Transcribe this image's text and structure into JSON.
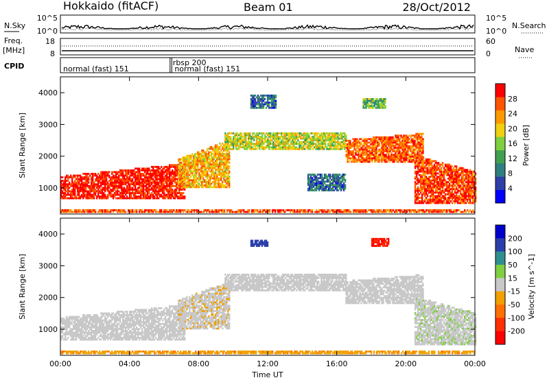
{
  "header": {
    "title": "Hokkaido (fitACF)",
    "beam": "Beam 01",
    "date": "28/Oct/2012"
  },
  "labels": {
    "nsky": "N.Sky",
    "nsearch": "N.Search",
    "freq_line1": "Freq.",
    "freq_line2": "[MHz]",
    "nave": "Nave",
    "cpid": "CPID",
    "nsky_tick_hi": "10^5",
    "nsky_tick_lo": "10^0",
    "freq_tick_hi": "18",
    "freq_tick_lo": "8",
    "nave_tick_hi": "60",
    "nave_tick_lo": "0",
    "nsearch_tick_hi": "10^5",
    "nsearch_tick_lo": "10^0"
  },
  "cpid_segments": [
    {
      "label": "normal (fast) 151",
      "start_hour": 0
    },
    {
      "label": "rbsp 200",
      "start_hour": 6.35
    },
    {
      "label": "normal (fast) 151",
      "start_hour": 6.45
    }
  ],
  "colors": {
    "power": [
      "#0000ff",
      "#2f3fa8",
      "#2e7f7f",
      "#3fa050",
      "#7fd040",
      "#f0d010",
      "#ff9900",
      "#ff5500",
      "#ff0000"
    ],
    "velocity": [
      "#0000cc",
      "#2a3faa",
      "#2f8f8f",
      "#7fd040",
      "#c8c8c8",
      "#f0a000",
      "#ff7000",
      "#ff3000",
      "#ff0000"
    ]
  },
  "chart_data": [
    {
      "type": "heatmap",
      "name": "power",
      "ylabel": "Slant Range [km]",
      "xlabel": "Time UT",
      "x_ticks": [
        "00:00",
        "04:00",
        "08:00",
        "12:00",
        "16:00",
        "20:00",
        "00:00"
      ],
      "x_range_hours": [
        0,
        24
      ],
      "y_ticks": [
        1000,
        2000,
        3000,
        4000
      ],
      "ylim": [
        180,
        4500
      ],
      "colorbar": {
        "label": "Power [dB]",
        "ticks": [
          4,
          8,
          12,
          16,
          20,
          24,
          28
        ],
        "range": [
          0,
          32
        ]
      },
      "echo_bands": [
        {
          "hour_start": 0.0,
          "hour_end": 7.2,
          "range_low": 650,
          "range_high_start": 1350,
          "range_high_end": 1750,
          "level": 30
        },
        {
          "hour_start": 6.8,
          "hour_end": 9.8,
          "range_low": 1000,
          "range_high_start": 1900,
          "range_high_end": 2500,
          "level": 22
        },
        {
          "hour_start": 9.5,
          "hour_end": 16.5,
          "range_low": 2200,
          "range_high_start": 2700,
          "range_high_end": 2700,
          "level": 18
        },
        {
          "hour_start": 16.5,
          "hour_end": 21.0,
          "range_low": 1800,
          "range_high_start": 2500,
          "range_high_end": 2700,
          "level": 26
        },
        {
          "hour_start": 20.5,
          "hour_end": 24.0,
          "range_low": 500,
          "range_high_start": 2000,
          "range_high_end": 1500,
          "level": 28
        },
        {
          "hour_start": 11.0,
          "hour_end": 12.5,
          "range_low": 3500,
          "range_high_start": 3900,
          "range_high_end": 3900,
          "level": 8
        },
        {
          "hour_start": 17.5,
          "hour_end": 18.8,
          "range_low": 3500,
          "range_high_start": 3800,
          "range_high_end": 3800,
          "level": 14
        },
        {
          "hour_start": 14.3,
          "hour_end": 16.5,
          "range_low": 900,
          "range_high_start": 1400,
          "range_high_end": 1400,
          "level": 8
        },
        {
          "hour_start": 0.0,
          "hour_end": 24.0,
          "range_low": 220,
          "range_high_start": 330,
          "range_high_end": 330,
          "level": 27
        }
      ]
    },
    {
      "type": "heatmap",
      "name": "velocity",
      "ylabel": "Slant Range [km]",
      "xlabel": "Time UT",
      "x_ticks": [
        "00:00",
        "04:00",
        "08:00",
        "12:00",
        "16:00",
        "20:00",
        "00:00"
      ],
      "x_range_hours": [
        0,
        24
      ],
      "y_ticks": [
        1000,
        2000,
        3000,
        4000
      ],
      "ylim": [
        180,
        4500
      ],
      "colorbar": {
        "label": "Velocity [m s^-1]",
        "ticks": [
          "200",
          "100",
          "50",
          "15",
          "-15",
          "-50",
          "-100",
          "-200"
        ],
        "range": [
          -250,
          250
        ]
      },
      "echo_bands": [
        {
          "hour_start": 0.0,
          "hour_end": 7.2,
          "range_low": 650,
          "range_high_start": 1350,
          "range_high_end": 1750,
          "level": 0
        },
        {
          "hour_start": 6.8,
          "hour_end": 9.8,
          "range_low": 1000,
          "range_high_start": 1900,
          "range_high_end": 2500,
          "level": -5
        },
        {
          "hour_start": 9.5,
          "hour_end": 16.5,
          "range_low": 2200,
          "range_high_start": 2700,
          "range_high_end": 2700,
          "level": 0
        },
        {
          "hour_start": 16.5,
          "hour_end": 21.0,
          "range_low": 1800,
          "range_high_start": 2500,
          "range_high_end": 2700,
          "level": 0
        },
        {
          "hour_start": 20.5,
          "hour_end": 24.0,
          "range_low": 500,
          "range_high_start": 2000,
          "range_high_end": 1500,
          "level": 5
        },
        {
          "hour_start": 18.0,
          "hour_end": 19.0,
          "range_low": 3600,
          "range_high_start": 3850,
          "range_high_end": 3850,
          "level": -200
        },
        {
          "hour_start": 11.0,
          "hour_end": 12.0,
          "range_low": 3600,
          "range_high_start": 3800,
          "range_high_end": 3800,
          "level": 150
        },
        {
          "hour_start": 0.0,
          "hour_end": 24.0,
          "range_low": 220,
          "range_high_start": 300,
          "range_high_end": 300,
          "level": -40
        }
      ]
    }
  ]
}
